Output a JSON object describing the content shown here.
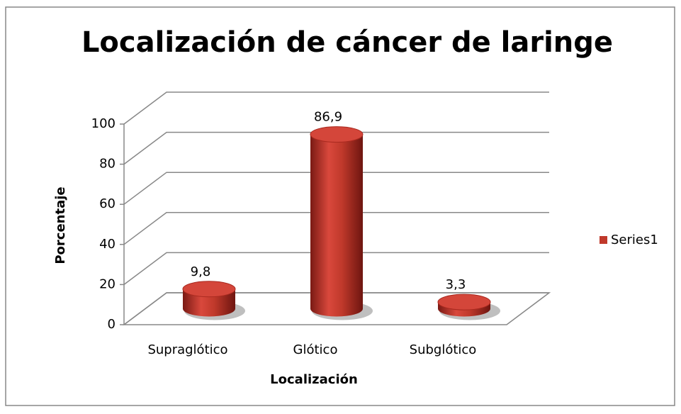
{
  "chart_data": {
    "type": "bar3d",
    "title": "Localización de cáncer de laringe",
    "x_label": "Localización",
    "y_label": "Porcentaje",
    "categories": [
      "Supraglótico",
      "Glótico",
      "Subglótico"
    ],
    "series": [
      {
        "name": "Series1",
        "color": "#c0392b",
        "values": [
          9.8,
          86.9,
          3.3
        ],
        "value_labels": [
          "9,8",
          "86,9",
          "3,3"
        ]
      }
    ],
    "ylim": [
      0,
      100
    ],
    "yticks": [
      0,
      20,
      40,
      60,
      80,
      100
    ],
    "grid": true,
    "legend": "right"
  }
}
